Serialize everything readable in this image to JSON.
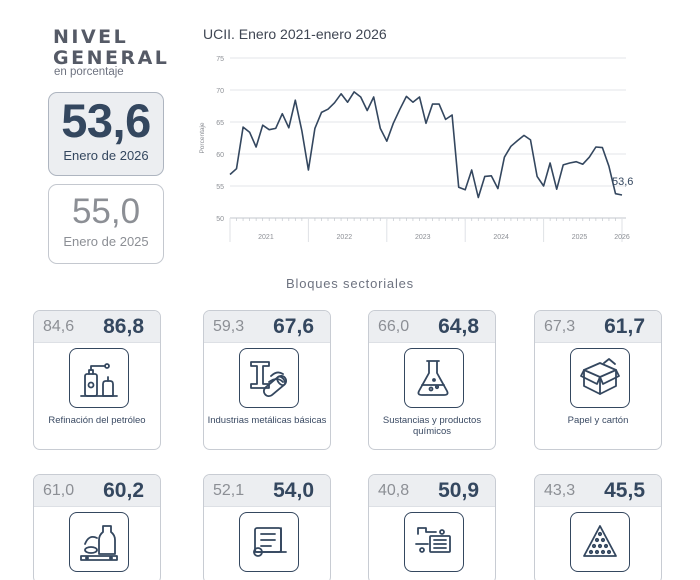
{
  "nivel": {
    "title_line1": "NIVEL",
    "title_line2": "GENERAL",
    "subtitle": "en porcentaje",
    "current": {
      "value": "53,6",
      "label": "Enero de 2026"
    },
    "previous": {
      "value": "55,0",
      "label": "Enero de 2025"
    }
  },
  "chart_title": "UCII. Enero 2021-enero 2026",
  "chart_data": {
    "type": "line",
    "title": "UCII. Enero 2021-enero 2026",
    "ylabel": "Porcentaje",
    "ylim": [
      50,
      75
    ],
    "yticks": [
      "50",
      "55",
      "60",
      "65",
      "70",
      "75"
    ],
    "year_labels": [
      "2021",
      "2022",
      "2023",
      "2024",
      "2025",
      "2026"
    ],
    "grid": true,
    "end_label": "53,6",
    "series": [
      {
        "values": [
          56.8,
          57.7,
          64.2,
          63.4,
          61.1,
          64.5,
          63.8,
          64.0,
          66.3,
          64.1,
          68.4,
          63.6,
          57.5,
          64.0,
          66.5,
          67.0,
          68.0,
          69.4,
          68.1,
          69.7,
          68.9,
          66.8,
          68.9,
          64.0,
          62.0,
          64.8,
          67.0,
          69.0,
          68.1,
          68.9,
          64.8,
          67.8,
          67.8,
          65.4,
          66.1,
          54.8,
          54.4,
          57.5,
          53.2,
          56.5,
          56.6,
          54.6,
          59.5,
          61.2,
          62.1,
          62.9,
          62.2,
          56.5,
          55.0,
          58.6,
          54.5,
          58.3,
          58.6,
          58.8,
          58.4,
          59.5,
          61.1,
          61.0,
          58.1,
          53.8,
          53.6
        ]
      }
    ]
  },
  "bloques_title": "Bloques sectoriales",
  "sectors": [
    {
      "prev": "84,6",
      "cur": "86,8",
      "label": "Refinación del petróleo",
      "icon": "oil-refinery-icon"
    },
    {
      "prev": "59,3",
      "cur": "67,6",
      "label": "Industrias metálicas básicas",
      "icon": "steel-beam-icon"
    },
    {
      "prev": "66,0",
      "cur": "64,8",
      "label": "Sustancias y productos químicos",
      "icon": "flask-icon"
    },
    {
      "prev": "67,3",
      "cur": "61,7",
      "label": "Papel y cartón",
      "icon": "cardboard-box-icon"
    },
    {
      "prev": "61,0",
      "cur": "60,2",
      "label": "",
      "icon": "food-products-icon"
    },
    {
      "prev": "52,1",
      "cur": "54,0",
      "label": "",
      "icon": "textile-roll-icon"
    },
    {
      "prev": "40,8",
      "cur": "50,9",
      "label": "",
      "icon": "machinery-icon"
    },
    {
      "prev": "43,3",
      "cur": "45,5",
      "label": "",
      "icon": "mineral-pile-icon"
    }
  ],
  "colors": {
    "primary": "#34475f",
    "muted": "#8c8f95",
    "panel": "#eceef1"
  }
}
